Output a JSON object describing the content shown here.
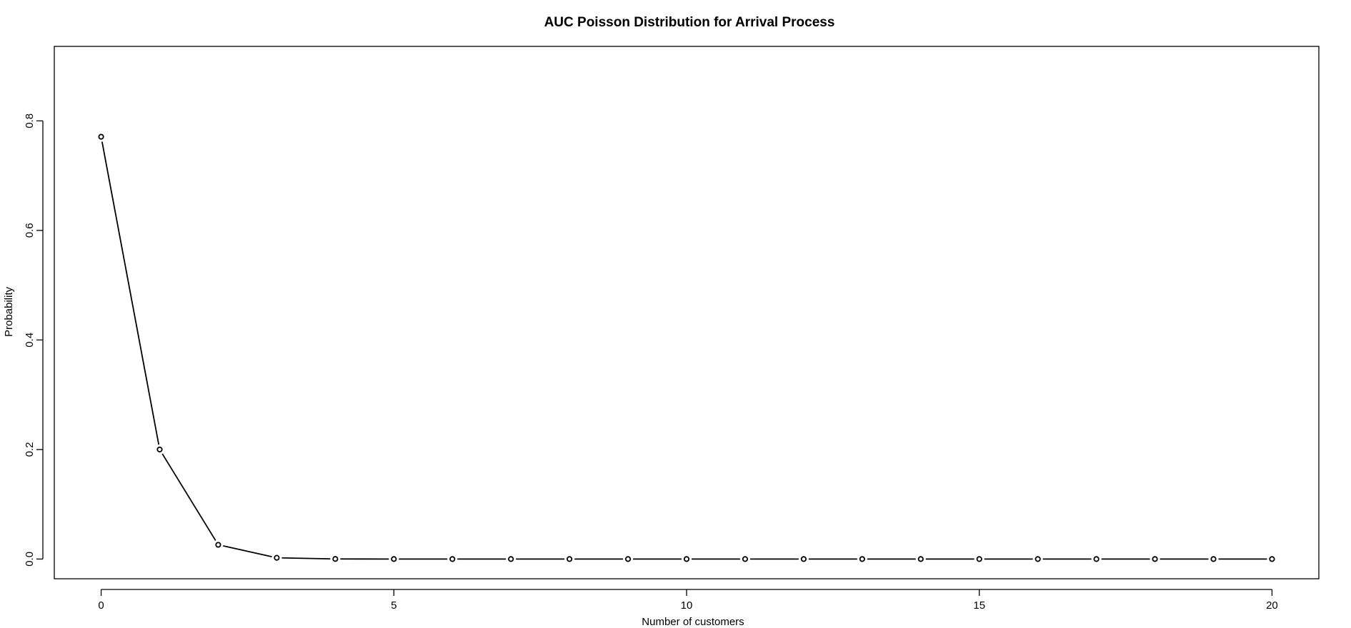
{
  "chart_data": {
    "type": "line",
    "title": "AUC Poisson Distribution for Arrival Process",
    "xlabel": "Number of customers",
    "ylabel": "Probability",
    "x": [
      0,
      1,
      2,
      3,
      4,
      5,
      6,
      7,
      8,
      9,
      10,
      11,
      12,
      13,
      14,
      15,
      16,
      17,
      18,
      19,
      20
    ],
    "y": [
      0.771,
      0.2,
      0.026,
      0.0023,
      0.00015,
      7.8e-06,
      3e-07,
      0,
      0,
      0,
      0,
      0,
      0,
      0,
      0,
      0,
      0,
      0,
      0,
      0,
      0
    ],
    "xlim": [
      -0.8,
      20.8
    ],
    "ylim": [
      -0.036,
      0.936
    ],
    "xticks": [
      0,
      5,
      10,
      15,
      20
    ],
    "xtick_labels": [
      "0",
      "5",
      "10",
      "15",
      "20"
    ],
    "yticks": [
      0.0,
      0.2,
      0.4,
      0.6,
      0.8
    ],
    "ytick_labels": [
      "0.0",
      "0.2",
      "0.4",
      "0.6",
      "0.8"
    ],
    "grid": false,
    "legend": "none",
    "line_color": "#000000",
    "marker": "open-circle"
  }
}
